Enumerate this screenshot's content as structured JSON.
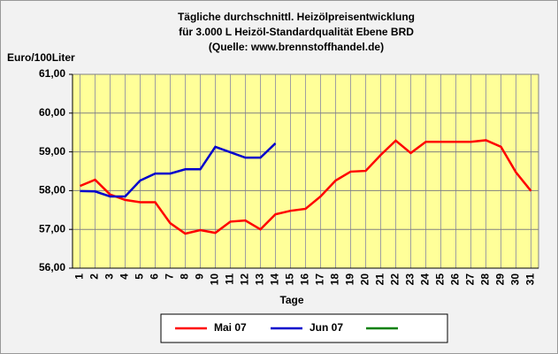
{
  "chart_data": {
    "type": "line",
    "title": "Tägliche durchschnittl. Heizölpreisentwicklung",
    "subtitle": "für 3.000 L Heizöl-Standardqualität Ebene BRD",
    "source": "(Quelle: www.brennstoffhandel.de)",
    "y_label": "Euro/100Liter",
    "x_label": "Tage",
    "categories": [
      "1",
      "2",
      "3",
      "4",
      "5",
      "6",
      "7",
      "8",
      "9",
      "10",
      "11",
      "12",
      "13",
      "14",
      "15",
      "16",
      "17",
      "18",
      "19",
      "20",
      "21",
      "22",
      "23",
      "24",
      "25",
      "26",
      "27",
      "28",
      "29",
      "30",
      "31"
    ],
    "series": [
      {
        "name": "Mai 07",
        "color": "#ff0000",
        "values": [
          58.12,
          58.28,
          57.9,
          57.76,
          57.7,
          57.7,
          57.16,
          56.89,
          56.98,
          56.91,
          57.2,
          57.23,
          57.0,
          57.39,
          57.48,
          57.53,
          57.85,
          58.26,
          58.49,
          58.51,
          58.92,
          59.29,
          58.97,
          59.26,
          59.26,
          59.26,
          59.26,
          59.3,
          59.13,
          58.47,
          57.99
        ]
      },
      {
        "name": "Jun 07",
        "color": "#0000cc",
        "values": [
          57.99,
          57.98,
          57.85,
          57.85,
          58.26,
          58.44,
          58.44,
          58.55,
          58.55,
          59.13,
          58.99,
          58.85,
          58.85,
          59.22,
          null,
          null,
          null,
          null,
          null,
          null,
          null,
          null,
          null,
          null,
          null,
          null,
          null,
          null,
          null,
          null,
          null
        ]
      },
      {
        "color": "#008000",
        "values": [
          null,
          null,
          null,
          null,
          null,
          null,
          null,
          null,
          null,
          null,
          null,
          null,
          null,
          null,
          null,
          null,
          null,
          null,
          null,
          null,
          null,
          null,
          null,
          null,
          null,
          null,
          null,
          null,
          null,
          null,
          null
        ]
      }
    ],
    "ylim": [
      56,
      61
    ],
    "yticks": [
      {
        "value": 56,
        "label": "56,00"
      },
      {
        "value": 57,
        "label": "57,00"
      },
      {
        "value": 58,
        "label": "58,00"
      },
      {
        "value": 59,
        "label": "59,00"
      },
      {
        "value": 60,
        "label": "60,00"
      },
      {
        "value": 61,
        "label": "61,00"
      }
    ],
    "grid": true,
    "legend": "bottom",
    "plot_color": "#ffff99"
  }
}
